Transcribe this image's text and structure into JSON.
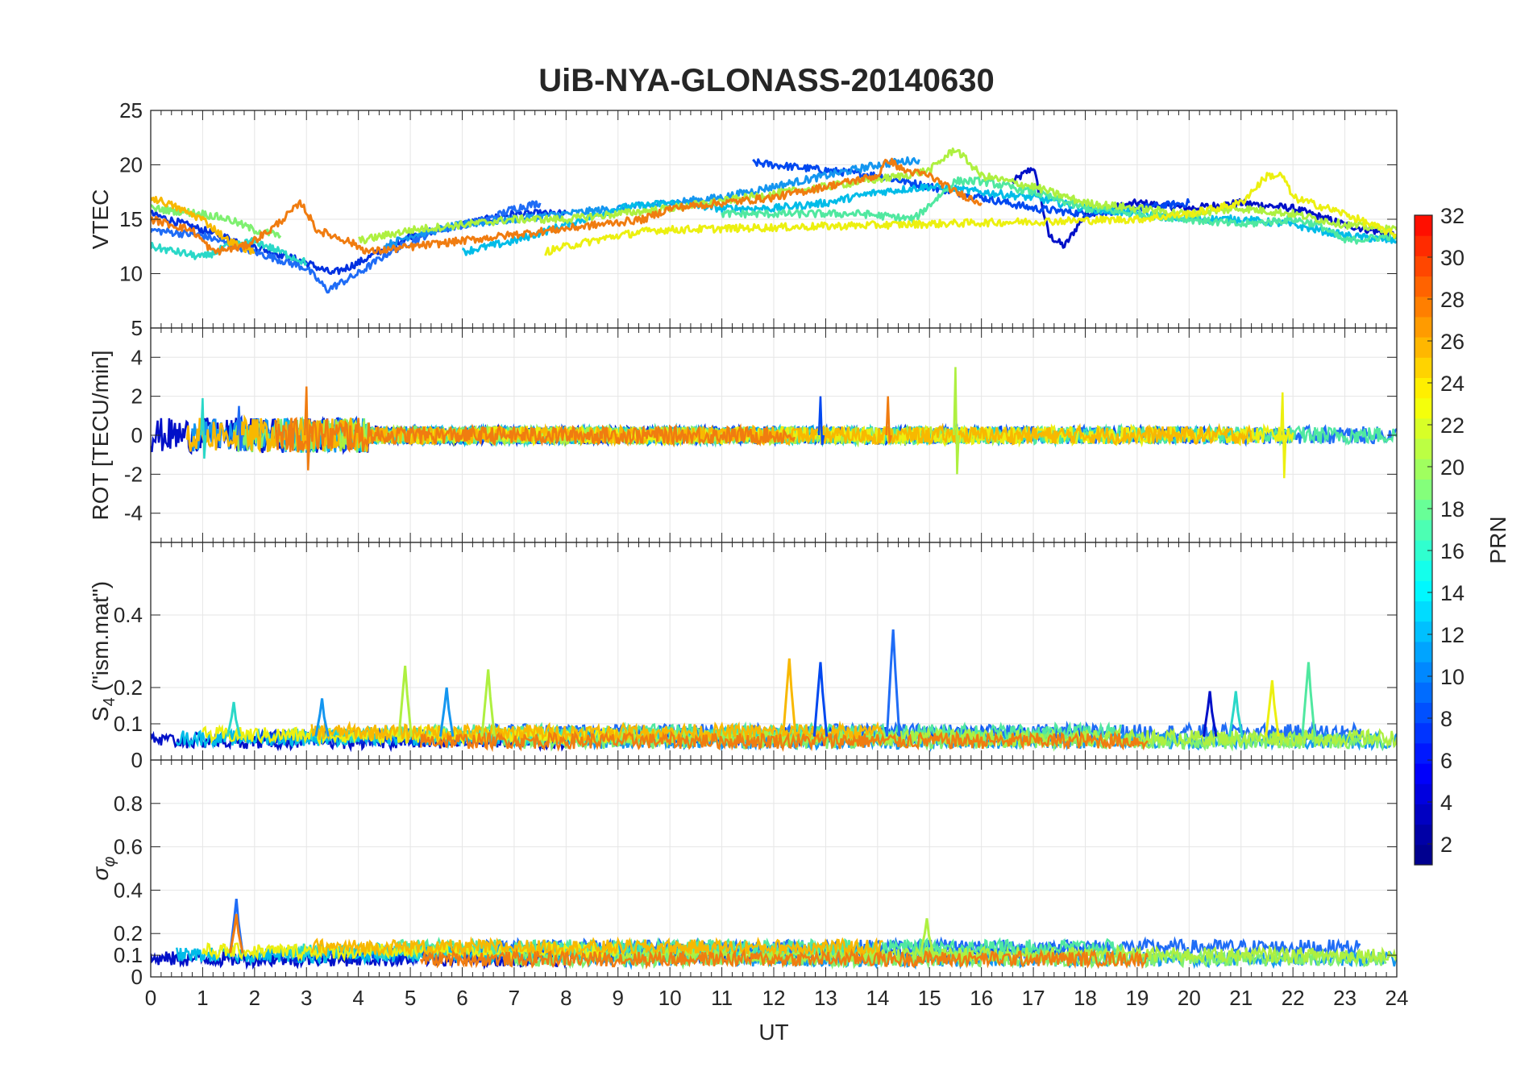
{
  "figure": {
    "title": "UiB-NYA-GLONASS-20140630"
  },
  "chart_data": [
    {
      "id": "vtec",
      "type": "line",
      "ylabel": "VTEC",
      "ylim": [
        5,
        25
      ],
      "yticks": [
        5,
        10,
        15,
        20,
        25
      ],
      "ytick_labels": [
        "5",
        "10",
        "15",
        "20",
        "25"
      ],
      "xlim": [
        0,
        24
      ],
      "grid": true,
      "series": [
        {
          "prn": 2,
          "color": "#0010c8",
          "values": [
            [
              16.6,
              18.4
            ],
            [
              17.0,
              19.8
            ],
            [
              17.3,
              13.5
            ],
            [
              17.6,
              12.5
            ],
            [
              18.0,
              15.5
            ],
            [
              19.0,
              16.5
            ],
            [
              20.0,
              16.0
            ],
            [
              21.0,
              16.5
            ],
            [
              22.0,
              16.0
            ],
            [
              23.0,
              14.5
            ],
            [
              24.0,
              13.5
            ]
          ]
        },
        {
          "prn": 3,
          "color": "#0030e0",
          "values": [
            [
              0.0,
              15.5
            ],
            [
              1.0,
              14.0
            ],
            [
              2.0,
              12.5
            ],
            [
              3.0,
              11.0
            ],
            [
              3.5,
              10.0
            ],
            [
              4.0,
              11.0
            ],
            [
              5.0,
              13.5
            ],
            [
              6.0,
              14.5
            ],
            [
              7.0,
              15.5
            ],
            [
              8.0,
              15.5
            ]
          ]
        },
        {
          "prn": 5,
          "color": "#0048f0",
          "values": [
            [
              11.6,
              20.2
            ],
            [
              12.0,
              20.0
            ],
            [
              13.0,
              19.5
            ],
            [
              14.0,
              19.0
            ],
            [
              15.0,
              18.0
            ],
            [
              16.0,
              17.0
            ],
            [
              17.0,
              16.0
            ],
            [
              18.0,
              15.5
            ],
            [
              19.0,
              16.0
            ],
            [
              20.0,
              16.5
            ]
          ]
        },
        {
          "prn": 7,
          "color": "#1f6cf6",
          "values": [
            [
              0.0,
              14.0
            ],
            [
              1.0,
              13.5
            ],
            [
              2.0,
              12.0
            ],
            [
              3.0,
              10.5
            ],
            [
              3.4,
              8.5
            ],
            [
              4.0,
              10.0
            ],
            [
              4.6,
              12.0
            ],
            [
              5.5,
              14.0
            ],
            [
              6.5,
              15.0
            ],
            [
              7.0,
              16.0
            ],
            [
              7.5,
              16.5
            ]
          ]
        },
        {
          "prn": 9,
          "color": "#1496f0",
          "values": [
            [
              4.5,
              12.5
            ],
            [
              5.0,
              13.5
            ],
            [
              6.0,
              14.5
            ],
            [
              7.0,
              15.0
            ],
            [
              8.0,
              15.5
            ],
            [
              9.0,
              16.0
            ],
            [
              10.0,
              16.5
            ],
            [
              11.0,
              17.0
            ],
            [
              12.0,
              18.0
            ],
            [
              13.0,
              19.0
            ],
            [
              14.0,
              20.0
            ],
            [
              14.8,
              20.5
            ]
          ]
        },
        {
          "prn": 11,
          "color": "#00bce8",
          "values": [
            [
              6.0,
              12.0
            ],
            [
              6.5,
              12.5
            ],
            [
              7.0,
              13.0
            ],
            [
              8.0,
              14.5
            ],
            [
              9.0,
              16.0
            ],
            [
              10.0,
              16.5
            ],
            [
              11.0,
              16.0
            ],
            [
              12.0,
              16.0
            ],
            [
              13.0,
              16.5
            ],
            [
              14.0,
              17.5
            ],
            [
              15.0,
              18.0
            ],
            [
              16.0,
              17.5
            ],
            [
              17.0,
              17.0
            ],
            [
              18.0,
              16.0
            ],
            [
              19.0,
              15.5
            ],
            [
              20.0,
              15.0
            ],
            [
              21.0,
              15.0
            ],
            [
              22.0,
              14.5
            ],
            [
              23.0,
              13.5
            ],
            [
              24.0,
              13.0
            ]
          ]
        },
        {
          "prn": 13,
          "color": "#2ad8c8",
          "values": [
            [
              0.0,
              12.5
            ],
            [
              0.5,
              12.0
            ],
            [
              1.0,
              11.5
            ],
            [
              1.5,
              12.5
            ],
            [
              2.0,
              13.0
            ],
            [
              2.5,
              12.0
            ],
            [
              3.0,
              11.0
            ]
          ]
        },
        {
          "prn": 14,
          "color": "#50e8a0",
          "values": [
            [
              11.0,
              15.5
            ],
            [
              12.0,
              15.5
            ],
            [
              13.0,
              15.5
            ],
            [
              13.7,
              15.5
            ],
            [
              14.7,
              15.0
            ],
            [
              15.5,
              18.5
            ],
            [
              16.0,
              18.5
            ],
            [
              17.0,
              17.5
            ],
            [
              18.0,
              16.0
            ],
            [
              19.0,
              15.5
            ],
            [
              20.0,
              15.0
            ],
            [
              21.0,
              14.5
            ],
            [
              22.0,
              15.0
            ],
            [
              22.5,
              14.5
            ],
            [
              23.0,
              13.0
            ],
            [
              24.0,
              13.5
            ]
          ]
        },
        {
          "prn": 16,
          "color": "#7ef070",
          "values": [
            [
              0.0,
              16.0
            ],
            [
              1.0,
              15.5
            ],
            [
              1.5,
              15.0
            ],
            [
              2.0,
              14.0
            ],
            [
              2.5,
              13.5
            ]
          ]
        },
        {
          "prn": 18,
          "color": "#aef040",
          "values": [
            [
              4.0,
              13.0
            ],
            [
              4.5,
              13.5
            ],
            [
              5.0,
              14.0
            ],
            [
              6.0,
              14.5
            ],
            [
              7.0,
              15.0
            ],
            [
              8.0,
              15.0
            ],
            [
              9.0,
              15.5
            ],
            [
              10.0,
              16.0
            ],
            [
              14.5,
              19.0
            ],
            [
              15.0,
              19.5
            ],
            [
              15.5,
              21.5
            ],
            [
              16.0,
              19.0
            ],
            [
              17.0,
              18.0
            ],
            [
              18.0,
              16.5
            ],
            [
              19.0,
              16.0
            ],
            [
              20.0,
              15.5
            ],
            [
              21.0,
              16.0
            ],
            [
              22.0,
              15.5
            ],
            [
              23.0,
              14.5
            ],
            [
              24.0,
              14.0
            ]
          ]
        },
        {
          "prn": 20,
          "color": "#ecf010",
          "values": [
            [
              7.6,
              12.0
            ],
            [
              8.0,
              12.5
            ],
            [
              9.0,
              13.5
            ],
            [
              9.7,
              14.0
            ],
            [
              19.0,
              15.0
            ],
            [
              20.0,
              15.5
            ],
            [
              21.0,
              16.5
            ],
            [
              21.5,
              19.0
            ],
            [
              21.8,
              19.0
            ],
            [
              22.0,
              17.0
            ],
            [
              23.0,
              15.5
            ],
            [
              24.0,
              13.5
            ]
          ]
        },
        {
          "prn": 22,
          "color": "#f8b800",
          "values": [
            [
              0.0,
              17.0
            ],
            [
              0.3,
              16.5
            ],
            [
              1.0,
              15.0
            ],
            [
              1.5,
              13.0
            ],
            [
              2.0,
              12.0
            ]
          ]
        },
        {
          "prn": 24,
          "color": "#f07c10",
          "values": [
            [
              0.0,
              15.0
            ],
            [
              0.8,
              14.0
            ],
            [
              1.2,
              12.0
            ],
            [
              1.8,
              12.5
            ],
            [
              2.3,
              14.0
            ],
            [
              2.9,
              16.5
            ],
            [
              3.2,
              14.0
            ],
            [
              3.8,
              13.0
            ],
            [
              4.2,
              12.0
            ],
            [
              9.5,
              15.0
            ],
            [
              10.0,
              16.0
            ],
            [
              11.0,
              16.5
            ],
            [
              12.0,
              17.0
            ],
            [
              13.0,
              18.0
            ],
            [
              13.5,
              18.5
            ],
            [
              14.0,
              19.0
            ],
            [
              14.2,
              20.5
            ],
            [
              14.5,
              19.5
            ],
            [
              15.0,
              19.0
            ],
            [
              15.5,
              17.5
            ],
            [
              16.0,
              16.5
            ]
          ]
        }
      ]
    },
    {
      "id": "rot",
      "type": "line",
      "ylabel": "ROT [TECU/min]",
      "ylim": [
        -5.5,
        5.5
      ],
      "yticks": [
        -4,
        -2,
        0,
        2,
        4
      ],
      "ytick_labels": [
        "-4",
        "-2",
        "0",
        "2",
        "4"
      ],
      "xlim": [
        0,
        24
      ],
      "grid": true,
      "spikes": [
        {
          "prn": 24,
          "color": "#f07c10",
          "x": 3.0,
          "ymin": -1.8,
          "ymax": 2.5
        },
        {
          "prn": 5,
          "color": "#0048f0",
          "x": 12.9,
          "ymin": -0.5,
          "ymax": 2.0
        },
        {
          "prn": 24,
          "color": "#f07c10",
          "x": 14.2,
          "ymin": -0.4,
          "ymax": 2.0
        },
        {
          "prn": 18,
          "color": "#aef040",
          "x": 15.5,
          "ymin": -2.0,
          "ymax": 3.5
        },
        {
          "prn": 20,
          "color": "#ecf010",
          "x": 21.8,
          "ymin": -2.2,
          "ymax": 2.2
        },
        {
          "prn": 7,
          "color": "#1f6cf6",
          "x": 1.7,
          "ymin": -0.8,
          "ymax": 1.5
        },
        {
          "prn": 13,
          "color": "#2ad8c8",
          "x": 1.0,
          "ymin": -1.2,
          "ymax": 1.9
        }
      ]
    },
    {
      "id": "s4",
      "type": "line",
      "ylabel": "S4 (\"ism.mat\")",
      "ylim": [
        0,
        0.6
      ],
      "yticks": [
        0,
        0.1,
        0.2,
        0.4
      ],
      "ytick_labels": [
        "0",
        "0.1",
        "0.2",
        "0.4"
      ],
      "xlim": [
        0,
        24
      ],
      "grid": true,
      "peaks": [
        {
          "prn": 13,
          "color": "#2ad8c8",
          "x": 1.6,
          "y": 0.16
        },
        {
          "prn": 9,
          "color": "#1496f0",
          "x": 3.3,
          "y": 0.17
        },
        {
          "prn": 18,
          "color": "#aef040",
          "x": 4.9,
          "y": 0.26
        },
        {
          "prn": 9,
          "color": "#1496f0",
          "x": 5.7,
          "y": 0.2
        },
        {
          "prn": 18,
          "color": "#aef040",
          "x": 6.5,
          "y": 0.25
        },
        {
          "prn": 22,
          "color": "#f8b800",
          "x": 12.3,
          "y": 0.28
        },
        {
          "prn": 5,
          "color": "#0048f0",
          "x": 12.9,
          "y": 0.27
        },
        {
          "prn": 7,
          "color": "#1f6cf6",
          "x": 14.3,
          "y": 0.36
        },
        {
          "prn": 2,
          "color": "#0010c8",
          "x": 20.4,
          "y": 0.19
        },
        {
          "prn": 13,
          "color": "#2ad8c8",
          "x": 20.9,
          "y": 0.19
        },
        {
          "prn": 20,
          "color": "#ecf010",
          "x": 21.6,
          "y": 0.22
        },
        {
          "prn": 14,
          "color": "#50e8a0",
          "x": 22.3,
          "y": 0.27
        }
      ]
    },
    {
      "id": "sigma_phi",
      "type": "line",
      "ylabel": "σφ",
      "ylim": [
        0,
        1
      ],
      "yticks": [
        0,
        0.1,
        0.2,
        0.4,
        0.6,
        0.8
      ],
      "ytick_labels": [
        "0",
        "0.1",
        "0.2",
        "0.4",
        "0.6",
        "0.8"
      ],
      "xlim": [
        0,
        24
      ],
      "xlabel": "UT",
      "xticks": [
        0,
        1,
        2,
        3,
        4,
        5,
        6,
        7,
        8,
        9,
        10,
        11,
        12,
        13,
        14,
        15,
        16,
        17,
        18,
        19,
        20,
        21,
        22,
        23,
        24
      ],
      "grid": true,
      "peaks": [
        {
          "prn": 7,
          "color": "#1f6cf6",
          "x": 1.65,
          "y": 0.36
        },
        {
          "prn": 24,
          "color": "#f07c10",
          "x": 1.65,
          "y": 0.29
        },
        {
          "prn": 18,
          "color": "#aef040",
          "x": 14.95,
          "y": 0.27
        }
      ]
    }
  ],
  "colorbar": {
    "label": "PRN",
    "range": [
      1,
      32
    ],
    "ticks": [
      "2",
      "4",
      "6",
      "8",
      "10",
      "12",
      "14",
      "16",
      "18",
      "20",
      "22",
      "24",
      "26",
      "28",
      "30",
      "32"
    ],
    "colors": [
      "#00008f",
      "#0000a6",
      "#0000c2",
      "#0000df",
      "#0000fb",
      "#0018ff",
      "#0034ff",
      "#0050ff",
      "#006cff",
      "#0088ff",
      "#00a4ff",
      "#00c0ff",
      "#00dcff",
      "#00f8ff",
      "#14ffeb",
      "#30ffcf",
      "#4cffb3",
      "#68ff97",
      "#84ff7b",
      "#a0ff5f",
      "#bcff43",
      "#d8ff27",
      "#f4ff0b",
      "#ffef00",
      "#ffd300",
      "#ffb700",
      "#ff9b00",
      "#ff7f00",
      "#ff6300",
      "#ff4700",
      "#ff2b00",
      "#ff0f00"
    ]
  }
}
